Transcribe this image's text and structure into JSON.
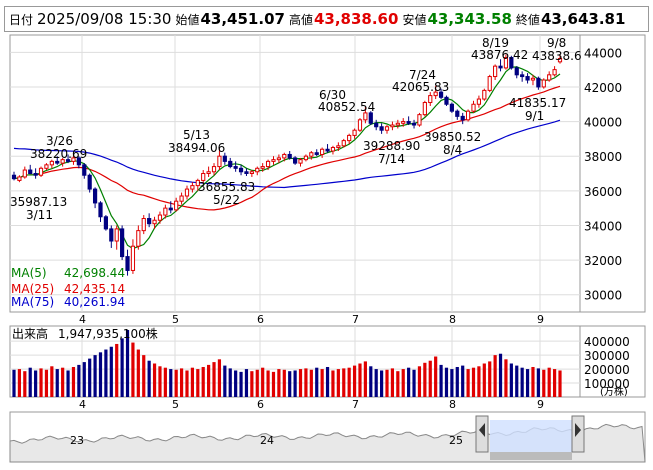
{
  "header": {
    "label_date": "日付",
    "date": "2025/09/08 15:30",
    "label_open": "始値",
    "open": "43,451.07",
    "label_high": "高値",
    "high": "43,838.60",
    "label_low": "安値",
    "low": "43,343.58",
    "label_close": "終値",
    "close": "43,643.81"
  },
  "colors": {
    "up": "#e00000",
    "down": "#000080",
    "ma5": "#008000",
    "ma25": "#e00000",
    "ma75": "#0000cc",
    "volume_up": "#e00000",
    "volume_down": "#000080"
  },
  "chart_data": [
    {
      "type": "candlestick",
      "ylim": [
        29000,
        45000
      ],
      "yticks": [
        30000,
        32000,
        34000,
        36000,
        38000,
        40000,
        42000,
        44000
      ],
      "ytick_labels": [
        "30000",
        "32000",
        "34000",
        "36000",
        "38000",
        "40000",
        "42000",
        "44000"
      ],
      "xtick_labels": [
        "4",
        "5",
        "6",
        "7",
        "8",
        "9"
      ],
      "grid": true,
      "candles_approx": [
        [
          36900,
          37100,
          36600,
          36700
        ],
        [
          36600,
          36900,
          36500,
          36800
        ],
        [
          36800,
          37400,
          36700,
          37200
        ],
        [
          37200,
          37500,
          37000,
          37000
        ],
        [
          37000,
          37300,
          36700,
          36900
        ],
        [
          36900,
          37400,
          36800,
          37300
        ],
        [
          37300,
          37600,
          37200,
          37500
        ],
        [
          37500,
          37800,
          37300,
          37700
        ],
        [
          37700,
          38000,
          37500,
          37600
        ],
        [
          37600,
          37900,
          37400,
          37800
        ],
        [
          37800,
          38100,
          37600,
          37700
        ],
        [
          37700,
          38221,
          37500,
          37900
        ],
        [
          37900,
          38000,
          37300,
          37500
        ],
        [
          37500,
          37600,
          36700,
          36900
        ],
        [
          36900,
          37000,
          35900,
          36100
        ],
        [
          36100,
          36200,
          35000,
          35300
        ],
        [
          35300,
          35400,
          34200,
          34500
        ],
        [
          34500,
          34600,
          33700,
          33800
        ],
        [
          33800,
          34000,
          32700,
          33100
        ],
        [
          33100,
          34000,
          32600,
          33800
        ],
        [
          33800,
          34000,
          32000,
          32200
        ],
        [
          32200,
          32600,
          31100,
          31400
        ],
        [
          31400,
          33200,
          31200,
          32800
        ],
        [
          32800,
          34000,
          32600,
          33700
        ],
        [
          33700,
          34600,
          33500,
          34400
        ],
        [
          34400,
          34700,
          33900,
          34100
        ],
        [
          34100,
          34500,
          33800,
          34300
        ],
        [
          34300,
          34800,
          34100,
          34600
        ],
        [
          34600,
          35200,
          34400,
          35000
        ],
        [
          35000,
          35400,
          34700,
          34900
        ],
        [
          34900,
          35600,
          34800,
          35400
        ],
        [
          35400,
          35900,
          35200,
          35700
        ],
        [
          35700,
          36300,
          35500,
          36100
        ],
        [
          36100,
          36500,
          35900,
          36300
        ],
        [
          36300,
          36700,
          36000,
          36600
        ],
        [
          36600,
          37200,
          36400,
          37000
        ],
        [
          37000,
          37400,
          36800,
          37100
        ],
        [
          37100,
          37600,
          36900,
          37400
        ],
        [
          37400,
          38494,
          37200,
          38000
        ],
        [
          38000,
          38200,
          37500,
          37700
        ],
        [
          37700,
          37900,
          37300,
          37400
        ],
        [
          37400,
          37700,
          37100,
          37300
        ],
        [
          37300,
          37500,
          36900,
          37100
        ],
        [
          37100,
          37300,
          36856,
          37000
        ],
        [
          37000,
          37200,
          36800,
          37100
        ],
        [
          37100,
          37400,
          36900,
          37300
        ],
        [
          37300,
          37600,
          37100,
          37400
        ],
        [
          37400,
          37800,
          37200,
          37700
        ],
        [
          37700,
          38000,
          37500,
          37800
        ],
        [
          37800,
          38100,
          37600,
          37900
        ],
        [
          37900,
          38200,
          37700,
          38100
        ],
        [
          38100,
          38300,
          37800,
          37900
        ],
        [
          37900,
          38000,
          37500,
          37600
        ],
        [
          37600,
          37900,
          37400,
          37800
        ],
        [
          37800,
          38100,
          37700,
          38000
        ],
        [
          38000,
          38300,
          37800,
          38200
        ],
        [
          38200,
          38400,
          38000,
          38100
        ],
        [
          38100,
          38500,
          37900,
          38400
        ],
        [
          38400,
          38700,
          38200,
          38300
        ],
        [
          38300,
          38600,
          38100,
          38500
        ],
        [
          38500,
          38800,
          38300,
          38600
        ],
        [
          38600,
          39000,
          38500,
          38900
        ],
        [
          38900,
          39300,
          38700,
          39200
        ],
        [
          39200,
          39600,
          39000,
          39500
        ],
        [
          39500,
          40200,
          39400,
          40100
        ],
        [
          40100,
          40853,
          39900,
          40500
        ],
        [
          40500,
          40600,
          39800,
          39900
        ],
        [
          39900,
          40100,
          39500,
          39700
        ],
        [
          39700,
          39900,
          39289,
          39500
        ],
        [
          39500,
          39800,
          39300,
          39700
        ],
        [
          39700,
          40000,
          39500,
          39800
        ],
        [
          39800,
          40100,
          39600,
          39900
        ],
        [
          39900,
          40200,
          39700,
          40000
        ],
        [
          40000,
          40300,
          39800,
          39900
        ],
        [
          39900,
          40100,
          39600,
          39800
        ],
        [
          39800,
          40500,
          39700,
          40400
        ],
        [
          40400,
          41200,
          40300,
          41100
        ],
        [
          41100,
          41700,
          40900,
          41500
        ],
        [
          41500,
          42066,
          41300,
          41700
        ],
        [
          41700,
          41900,
          41300,
          41400
        ],
        [
          41400,
          41500,
          40900,
          41000
        ],
        [
          41000,
          41100,
          40500,
          40600
        ],
        [
          40600,
          40700,
          40100,
          40300
        ],
        [
          40300,
          40500,
          39851,
          40100
        ],
        [
          40100,
          40700,
          40000,
          40600
        ],
        [
          40600,
          41200,
          40500,
          41000
        ],
        [
          41000,
          41500,
          40800,
          41300
        ],
        [
          41300,
          41900,
          41200,
          41800
        ],
        [
          41800,
          42700,
          41700,
          42600
        ],
        [
          42600,
          43300,
          42400,
          43200
        ],
        [
          43200,
          43600,
          42900,
          43100
        ],
        [
          43100,
          43876,
          43000,
          43700
        ],
        [
          43700,
          43800,
          43000,
          43100
        ],
        [
          43100,
          43200,
          42500,
          42700
        ],
        [
          42700,
          42900,
          42300,
          42600
        ],
        [
          42600,
          42800,
          42200,
          42400
        ],
        [
          42400,
          42700,
          42100,
          42500
        ],
        [
          42500,
          42600,
          41836,
          42000
        ],
        [
          42000,
          42500,
          41900,
          42400
        ],
        [
          42400,
          42900,
          42300,
          42700
        ],
        [
          42700,
          43200,
          42600,
          43000
        ],
        [
          43451,
          43839,
          43344,
          43644
        ]
      ],
      "annotations": [
        {
          "value": "3/26",
          "kind": "date"
        },
        {
          "value": "38220.69",
          "kind": "high"
        },
        {
          "value": "35987.13",
          "kind": "low"
        },
        {
          "value": "3/11",
          "kind": "date"
        },
        {
          "value": "5/13",
          "kind": "date"
        },
        {
          "value": "38494.06",
          "kind": "high"
        },
        {
          "value": "36855.83",
          "kind": "low"
        },
        {
          "value": "5/22",
          "kind": "date"
        },
        {
          "value": "6/30",
          "kind": "date"
        },
        {
          "value": "40852.54",
          "kind": "high"
        },
        {
          "value": "39288.90",
          "kind": "low"
        },
        {
          "value": "7/14",
          "kind": "date"
        },
        {
          "value": "7/24",
          "kind": "date"
        },
        {
          "value": "42065.83",
          "kind": "high"
        },
        {
          "value": "39850.52",
          "kind": "low"
        },
        {
          "value": "8/4",
          "kind": "date"
        },
        {
          "value": "8/19",
          "kind": "date"
        },
        {
          "value": "43876.42",
          "kind": "high"
        },
        {
          "value": "41835.17",
          "kind": "low"
        },
        {
          "value": "9/1",
          "kind": "date"
        },
        {
          "value": "9/8",
          "kind": "date"
        },
        {
          "value": "43838.6",
          "kind": "high"
        }
      ],
      "legend": [
        {
          "label": "MA(5)",
          "value": "42,698.44"
        },
        {
          "label": "MA(25)",
          "value": "42,435.14"
        },
        {
          "label": "MA(75)",
          "value": "40,261.94"
        }
      ]
    },
    {
      "type": "bar",
      "title": "出来高",
      "total": "1,947,935,100株",
      "ylim": [
        0,
        480000
      ],
      "yticks": [
        100000,
        200000,
        300000,
        400000
      ],
      "ytick_labels": [
        "100000",
        "200000",
        "300000",
        "400000"
      ],
      "unit": "(万株)",
      "xtick_labels": [
        "4",
        "5",
        "6",
        "7",
        "8",
        "9"
      ],
      "values_approx": [
        195000,
        200000,
        185000,
        210000,
        190000,
        205000,
        195000,
        220000,
        200000,
        210000,
        190000,
        215000,
        230000,
        250000,
        275000,
        300000,
        320000,
        340000,
        360000,
        380000,
        420000,
        480000,
        390000,
        340000,
        300000,
        260000,
        240000,
        220000,
        210000,
        200000,
        195000,
        205000,
        190000,
        210000,
        200000,
        215000,
        230000,
        250000,
        270000,
        225000,
        205000,
        190000,
        180000,
        200000,
        185000,
        195000,
        210000,
        190000,
        180000,
        200000,
        195000,
        185000,
        190000,
        200000,
        205000,
        195000,
        210000,
        200000,
        215000,
        190000,
        200000,
        205000,
        210000,
        225000,
        240000,
        255000,
        220000,
        200000,
        190000,
        195000,
        205000,
        185000,
        200000,
        210000,
        195000,
        220000,
        245000,
        260000,
        290000,
        230000,
        210000,
        200000,
        215000,
        225000,
        200000,
        210000,
        220000,
        240000,
        255000,
        300000,
        310000,
        270000,
        240000,
        225000,
        210000,
        200000,
        215000,
        205000,
        195000,
        210000,
        200000,
        190000
      ],
      "up_approx": "bars alternate red (up day) and navy (down day)"
    },
    {
      "type": "area",
      "role": "period-navigator",
      "xtick_labels": [
        "23",
        "24",
        "25"
      ]
    }
  ]
}
